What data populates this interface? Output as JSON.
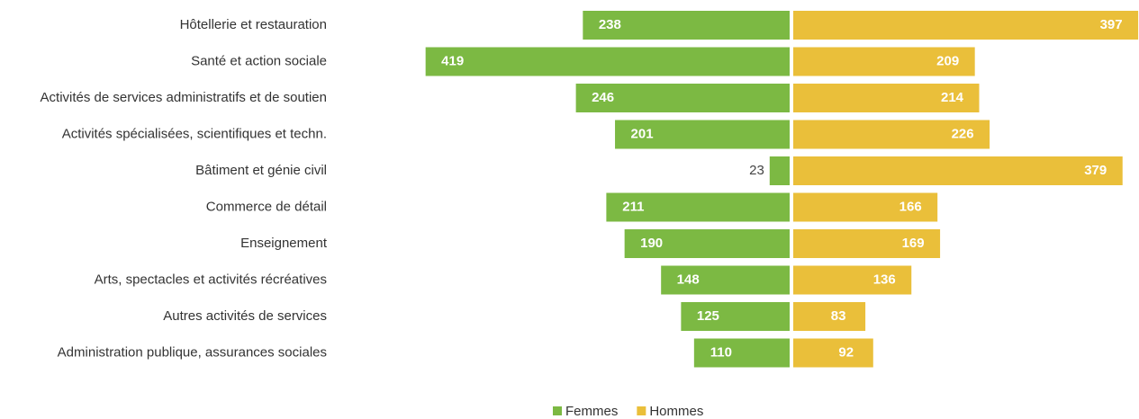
{
  "chart_data": {
    "type": "diverging-bar",
    "categories": [
      "Hôtellerie et restauration",
      "Santé et action sociale",
      "Activités de services administratifs et de soutien",
      "Activités spécialisées, scientifiques et techn.",
      "Bâtiment et génie civil",
      "Commerce de détail",
      "Enseignement",
      "Arts, spectacles et activités récréatives",
      "Autres activités de services",
      "Administration publique, assurances sociales"
    ],
    "series": [
      {
        "name": "Femmes",
        "color": "#7cb943",
        "values": [
          238,
          419,
          246,
          201,
          23,
          211,
          190,
          148,
          125,
          110
        ]
      },
      {
        "name": "Hommes",
        "color": "#eabf3a",
        "values": [
          397,
          209,
          214,
          226,
          379,
          166,
          169,
          136,
          83,
          92
        ]
      }
    ]
  }
}
